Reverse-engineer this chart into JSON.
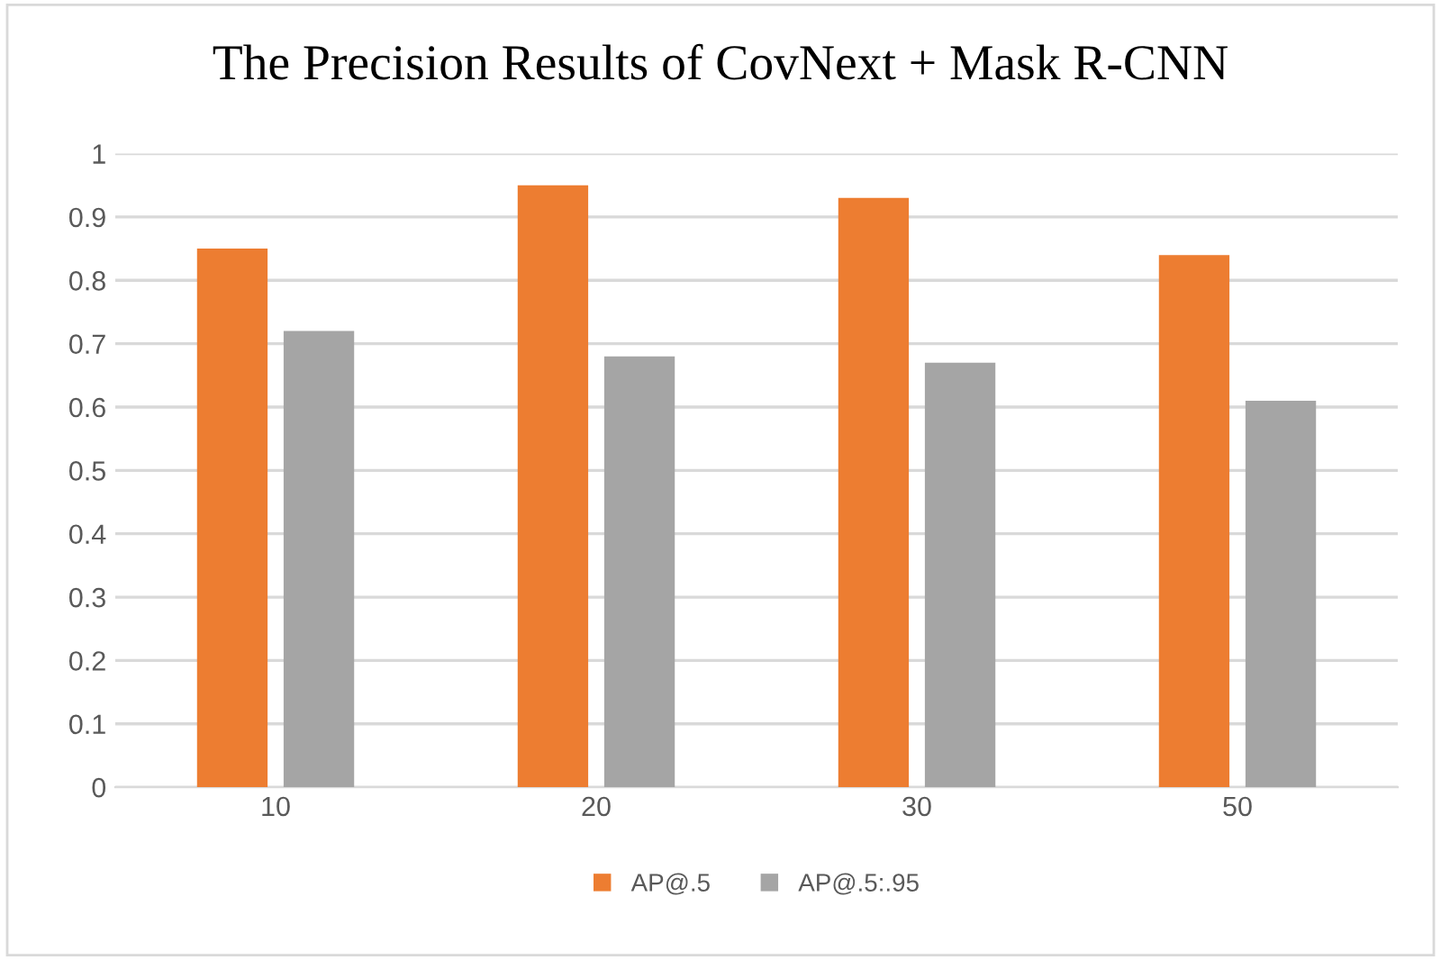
{
  "chart_data": {
    "type": "bar",
    "title": "The Precision Results of CovNext + Mask R-CNN",
    "categories": [
      "10",
      "20",
      "30",
      "50"
    ],
    "series": [
      {
        "name": "AP@.5",
        "color": "#ed7d31",
        "values": [
          0.85,
          0.95,
          0.93,
          0.84
        ]
      },
      {
        "name": "AP@.5:.95",
        "color": "#a5a5a5",
        "values": [
          0.72,
          0.68,
          0.67,
          0.61
        ]
      }
    ],
    "ylim": [
      0,
      1
    ],
    "yticks": [
      0,
      0.1,
      0.2,
      0.3,
      0.4,
      0.5,
      0.6,
      0.7,
      0.8,
      0.9,
      1
    ],
    "grid": "y",
    "legend": "bottom"
  }
}
